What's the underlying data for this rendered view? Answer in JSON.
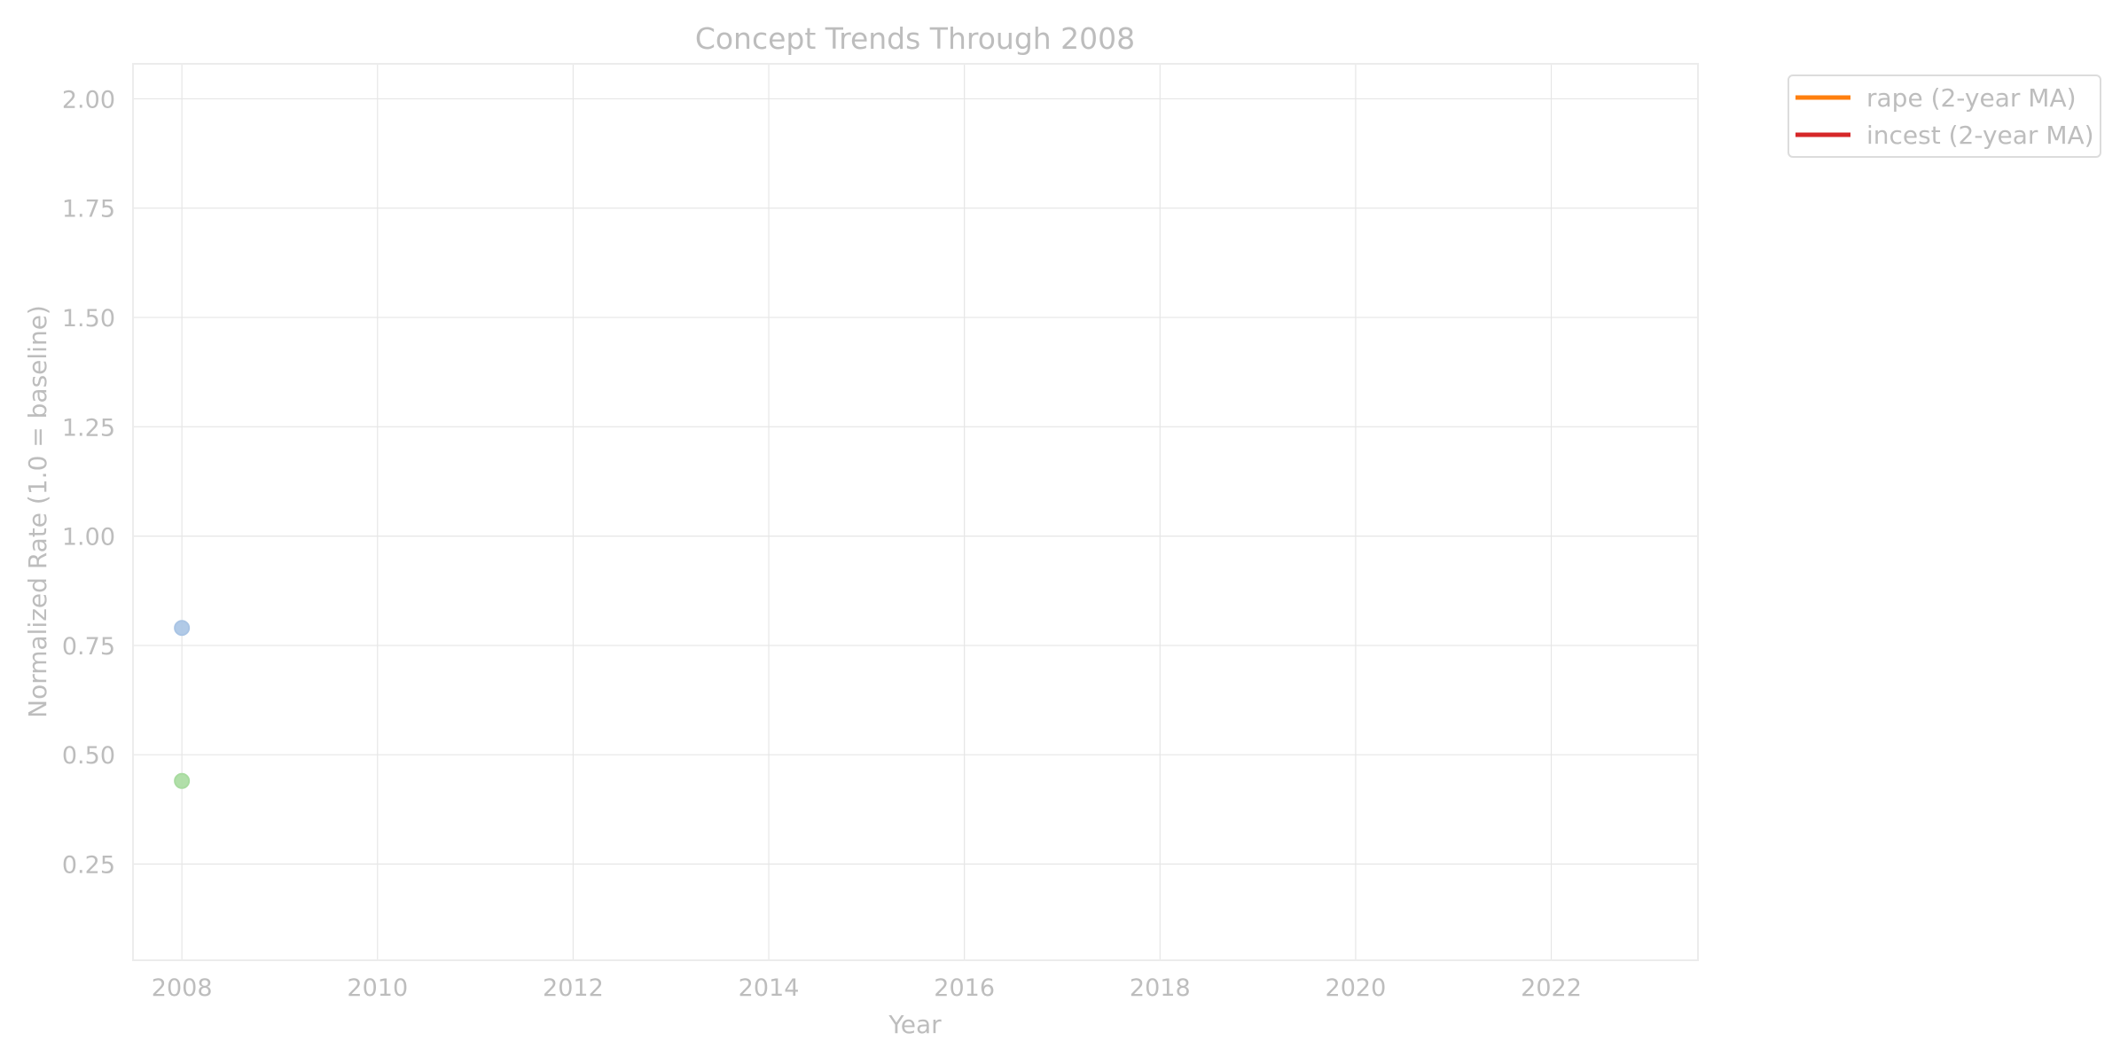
{
  "chart_data": {
    "type": "line",
    "title": "Concept Trends Through 2008",
    "xlabel": "Year",
    "ylabel": "Normalized Rate (1.0 = baseline)",
    "xlim": [
      2007.5,
      2023.5
    ],
    "ylim": [
      0.03,
      2.08
    ],
    "x_ticks": [
      2008,
      2010,
      2012,
      2014,
      2016,
      2018,
      2020,
      2022
    ],
    "y_ticks": [
      0.25,
      0.5,
      0.75,
      1.0,
      1.25,
      1.5,
      1.75,
      2.0
    ],
    "x_tick_labels": [
      "2008",
      "2010",
      "2012",
      "2014",
      "2016",
      "2018",
      "2020",
      "2022"
    ],
    "y_tick_labels": [
      "0.25",
      "0.50",
      "0.75",
      "1.00",
      "1.25",
      "1.50",
      "1.75",
      "2.00"
    ],
    "grid": true,
    "legend_position": "outside-top-right",
    "series": [
      {
        "name": "rape (2-year MA)",
        "color": "#ff7f0e",
        "x": [],
        "y": []
      },
      {
        "name": "incest (2-year MA)",
        "color": "#d62728",
        "x": [],
        "y": []
      }
    ],
    "points": [
      {
        "x": 2008,
        "y": 0.79,
        "color": "#a9c4e4"
      },
      {
        "x": 2008,
        "y": 0.44,
        "color": "#a8dba0"
      }
    ]
  }
}
